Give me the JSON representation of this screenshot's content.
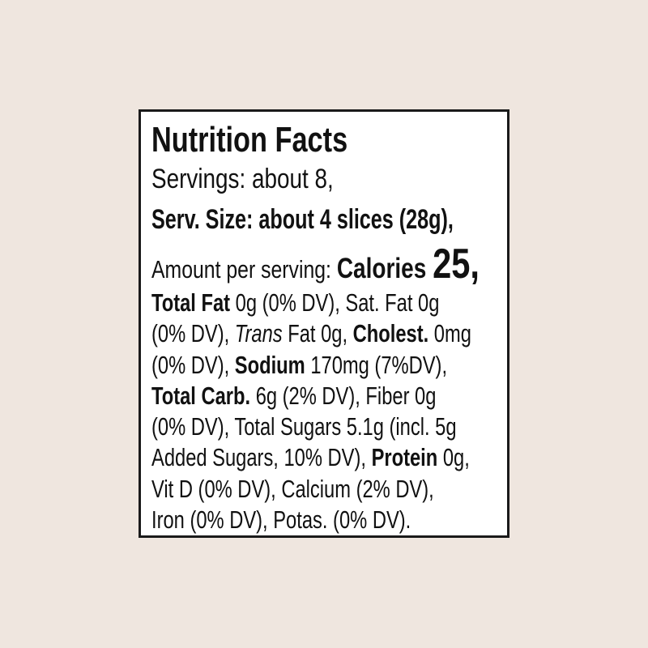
{
  "label": {
    "title": "Nutrition Facts",
    "servings": "Servings: about 8,",
    "serv_size_label": "Serv. Size:",
    "serv_size_value": " about 4 slices (28g),",
    "amount_label": "Amount per serving: ",
    "calories_label": "Calories ",
    "calories_value": "25,",
    "lines": [
      [
        {
          "t": "Total Fat",
          "b": true
        },
        {
          "t": " 0g (0% DV), Sat. Fat 0g"
        }
      ],
      [
        {
          "t": "(0% DV), "
        },
        {
          "t": "Trans",
          "i": true
        },
        {
          "t": " Fat 0g, "
        },
        {
          "t": "Cholest.",
          "b": true
        },
        {
          "t": " 0mg"
        }
      ],
      [
        {
          "t": "(0% DV), "
        },
        {
          "t": "Sodium",
          "b": true
        },
        {
          "t": " 170mg (7%DV),"
        }
      ],
      [
        {
          "t": "Total Carb.",
          "b": true
        },
        {
          "t": " 6g (2% DV), Fiber 0g"
        }
      ],
      [
        {
          "t": "(0% DV), Total Sugars 5.1g (incl. 5g"
        }
      ],
      [
        {
          "t": "Added Sugars, 10% DV), "
        },
        {
          "t": "Protein",
          "b": true
        },
        {
          "t": " 0g,"
        }
      ],
      [
        {
          "t": "Vit D (0% DV), Calcium (2% DV),"
        }
      ],
      [
        {
          "t": "Iron (0% DV), Potas. (0% DV)."
        }
      ]
    ]
  },
  "colors": {
    "background": "#efe6df",
    "panel": "#ffffff",
    "text": "#111111",
    "border": "#1a1a1a"
  }
}
